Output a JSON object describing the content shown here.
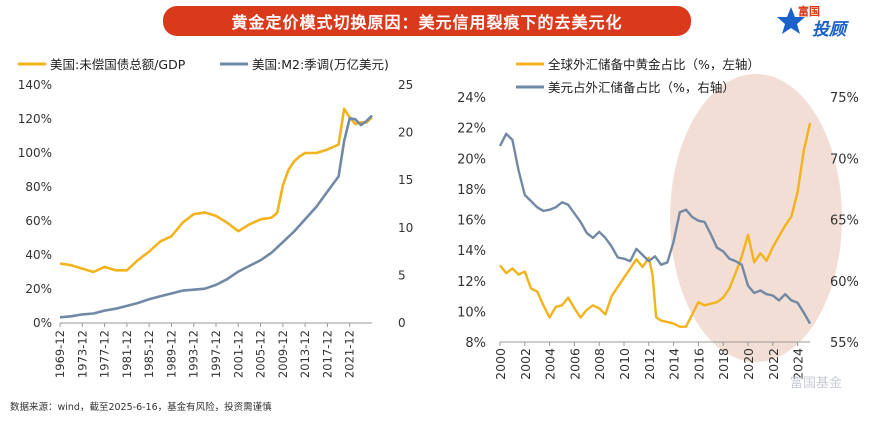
{
  "banner": {
    "title": "黄金定价模式切换原因：美元信用裂痕下的去美元化"
  },
  "logo": {
    "top": "富国",
    "big": "投顾"
  },
  "watermark": "富国基金",
  "source": "数据来源：wind，截至2025-6-16，基金有风险，投资需谨慎",
  "colors": {
    "gold": "#f2b31c",
    "blue": "#7289a6",
    "banner": "#d93a1c",
    "highlight": "#e8c2b2"
  },
  "chart_data": [
    {
      "type": "line",
      "legend": [
        "美国:未偿国债总额/GDP",
        "美国:M2:季调(万亿美元)"
      ],
      "x_ticks": [
        "1969-12",
        "1973-12",
        "1977-12",
        "1981-12",
        "1985-12",
        "1989-12",
        "1993-12",
        "1997-12",
        "2001-12",
        "2005-12",
        "2009-12",
        "2013-12",
        "2017-12",
        "2021-12"
      ],
      "ylim_left": [
        0,
        140
      ],
      "yticks_left": [
        "0%",
        "20%",
        "40%",
        "60%",
        "80%",
        "100%",
        "120%",
        "140%"
      ],
      "ylim_right": [
        0,
        25
      ],
      "yticks_right": [
        "0",
        "5",
        "10",
        "15",
        "20",
        "25"
      ],
      "series": [
        {
          "name": "美国:未偿国债总额/GDP",
          "axis": "left",
          "x": [
            1969,
            1971,
            1973,
            1975,
            1977,
            1979,
            1981,
            1983,
            1985,
            1987,
            1989,
            1991,
            1993,
            1995,
            1997,
            1999,
            2001,
            2003,
            2005,
            2007,
            2008,
            2009,
            2010,
            2011,
            2012,
            2013,
            2015,
            2017,
            2019,
            2020,
            2021,
            2022,
            2023,
            2024,
            2025
          ],
          "y": [
            35,
            34,
            32,
            30,
            33,
            31,
            31,
            37,
            42,
            48,
            51,
            59,
            64,
            65,
            63,
            59,
            54,
            58,
            61,
            62,
            65,
            81,
            90,
            95,
            98,
            100,
            100,
            102,
            105,
            126,
            121,
            117,
            118,
            118,
            121
          ]
        },
        {
          "name": "美国:M2:季调(万亿美元)",
          "axis": "right",
          "x": [
            1969,
            1971,
            1973,
            1975,
            1977,
            1979,
            1981,
            1983,
            1985,
            1987,
            1989,
            1991,
            1993,
            1995,
            1997,
            1999,
            2001,
            2003,
            2005,
            2007,
            2009,
            2011,
            2013,
            2015,
            2017,
            2019,
            2020,
            2021,
            2022,
            2023,
            2024,
            2025
          ],
          "y": [
            0.6,
            0.7,
            0.9,
            1.0,
            1.3,
            1.5,
            1.8,
            2.1,
            2.5,
            2.8,
            3.1,
            3.4,
            3.5,
            3.6,
            4.0,
            4.6,
            5.4,
            6.0,
            6.6,
            7.4,
            8.5,
            9.6,
            10.9,
            12.2,
            13.8,
            15.4,
            19.1,
            21.5,
            21.4,
            20.8,
            21.2,
            21.8
          ]
        }
      ]
    },
    {
      "type": "line",
      "legend": [
        "全球外汇储备中黄金占比（%，左轴）",
        "美元占外汇储备占比（%，右轴）"
      ],
      "x_ticks": [
        "2000",
        "2002",
        "2004",
        "2006",
        "2008",
        "2010",
        "2012",
        "2014",
        "2016",
        "2018",
        "2020",
        "2022",
        "2024"
      ],
      "ylim_left": [
        8,
        24
      ],
      "yticks_left": [
        "8%",
        "10%",
        "12%",
        "14%",
        "16%",
        "18%",
        "20%",
        "22%",
        "24%"
      ],
      "ylim_right": [
        55,
        75
      ],
      "yticks_right": [
        "55%",
        "60%",
        "65%",
        "70%",
        "75%"
      ],
      "series": [
        {
          "name": "全球外汇储备中黄金占比（%，左轴）",
          "axis": "left",
          "x": [
            2000,
            2000.5,
            2001,
            2001.5,
            2002,
            2002.5,
            2003,
            2003.5,
            2004,
            2004.5,
            2005,
            2005.5,
            2006,
            2006.5,
            2007,
            2007.5,
            2008,
            2008.5,
            2009,
            2009.5,
            2010,
            2010.5,
            2011,
            2011.5,
            2012,
            2012.3,
            2012.6,
            2013,
            2013.5,
            2014,
            2014.5,
            2015,
            2015.5,
            2016,
            2016.5,
            2017,
            2017.5,
            2018,
            2018.5,
            2019,
            2019.5,
            2020,
            2020.5,
            2021,
            2021.5,
            2022,
            2022.5,
            2023,
            2023.5,
            2024,
            2024.5,
            2025
          ],
          "y": [
            13,
            12.5,
            12.8,
            12.4,
            12.6,
            11.5,
            11.3,
            10.4,
            9.6,
            10.3,
            10.4,
            10.9,
            10.2,
            9.6,
            10.1,
            10.4,
            10.2,
            9.8,
            11,
            11.6,
            12.2,
            12.8,
            13.4,
            12.9,
            13.5,
            12.4,
            9.6,
            9.4,
            9.3,
            9.2,
            9.0,
            9.0,
            9.8,
            10.6,
            10.4,
            10.5,
            10.6,
            10.9,
            11.5,
            12.5,
            13.6,
            15,
            13.2,
            13.8,
            13.3,
            14.2,
            14.9,
            15.6,
            16.2,
            17.8,
            20.5,
            22.3
          ]
        },
        {
          "name": "美元占外汇储备占比（%，右轴）",
          "axis": "right",
          "x": [
            2000,
            2000.5,
            2001,
            2001.5,
            2002,
            2002.5,
            2003,
            2003.5,
            2004,
            2004.5,
            2005,
            2005.5,
            2006,
            2006.5,
            2007,
            2007.5,
            2008,
            2008.5,
            2009,
            2009.5,
            2010,
            2010.5,
            2011,
            2011.5,
            2012,
            2012.5,
            2013,
            2013.5,
            2014,
            2014.5,
            2015,
            2015.5,
            2016,
            2016.5,
            2017,
            2017.5,
            2018,
            2018.5,
            2019,
            2019.5,
            2020,
            2020.5,
            2021,
            2021.5,
            2022,
            2022.5,
            2023,
            2023.5,
            2024,
            2024.5,
            2025
          ],
          "y": [
            71,
            72,
            71.5,
            69,
            67,
            66.5,
            66,
            65.7,
            65.8,
            66,
            66.4,
            66.2,
            65.5,
            64.8,
            63.9,
            63.5,
            64,
            63.5,
            62.8,
            61.9,
            61.8,
            61.6,
            62.6,
            62.1,
            61.6,
            62,
            61.3,
            61.5,
            63.2,
            65.6,
            65.8,
            65.2,
            64.9,
            64.8,
            63.8,
            62.7,
            62.4,
            61.8,
            61.6,
            61.3,
            59.6,
            59,
            59.2,
            58.9,
            58.8,
            58.4,
            58.9,
            58.4,
            58.2,
            57.4,
            56.5
          ]
        }
      ]
    }
  ]
}
